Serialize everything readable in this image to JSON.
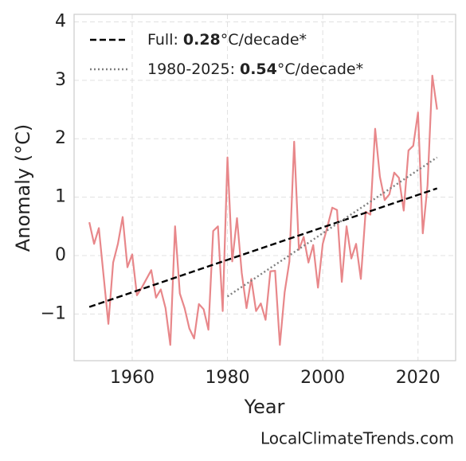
{
  "chart_data": {
    "type": "line",
    "xlabel": "Year",
    "ylabel": "Anomaly (°C)",
    "source": "LocalClimateTrends.com",
    "xlim": [
      1947.8,
      2027.9
    ],
    "xticks": [
      1960,
      1980,
      2000,
      2020
    ],
    "ylim": [
      -1.8,
      4.13
    ],
    "yticks": [
      {
        "value": -1,
        "label": "−1"
      },
      0,
      1,
      2,
      3,
      4
    ],
    "grid": true,
    "legend": "upper left",
    "series": [
      {
        "color": "#e8878a",
        "x": [
          1951,
          1952,
          1953,
          1954,
          1955,
          1956,
          1957,
          1958,
          1959,
          1960,
          1961,
          1962,
          1963,
          1964,
          1965,
          1966,
          1967,
          1968,
          1969,
          1970,
          1971,
          1972,
          1973,
          1974,
          1975,
          1976,
          1977,
          1978,
          1979,
          1980,
          1981,
          1982,
          1983,
          1984,
          1985,
          1986,
          1987,
          1988,
          1989,
          1990,
          1991,
          1992,
          1993,
          1994,
          1995,
          1996,
          1997,
          1998,
          1999,
          2000,
          2001,
          2002,
          2003,
          2004,
          2005,
          2006,
          2007,
          2008,
          2009,
          2010,
          2011,
          2012,
          2013,
          2014,
          2015,
          2016,
          2017,
          2018,
          2019,
          2020,
          2021,
          2022,
          2023,
          2024
        ],
        "values": [
          0.57,
          0.2,
          0.47,
          -0.35,
          -1.17,
          -0.12,
          0.2,
          0.66,
          -0.2,
          0.02,
          -0.68,
          -0.55,
          -0.4,
          -0.25,
          -0.72,
          -0.58,
          -0.9,
          -1.53,
          0.5,
          -0.65,
          -0.9,
          -1.25,
          -1.42,
          -0.83,
          -0.92,
          -1.27,
          0.42,
          0.5,
          -0.95,
          1.68,
          -0.1,
          0.64,
          -0.3,
          -0.9,
          -0.4,
          -0.95,
          -0.82,
          -1.1,
          -0.27,
          -0.26,
          -1.53,
          -0.63,
          -0.1,
          1.95,
          0.1,
          0.32,
          -0.12,
          0.18,
          -0.55,
          0.2,
          0.5,
          0.82,
          0.78,
          -0.45,
          0.5,
          -0.05,
          0.2,
          -0.4,
          0.75,
          0.7,
          2.17,
          1.35,
          0.95,
          1.05,
          1.42,
          1.33,
          0.77,
          1.8,
          1.88,
          2.45,
          0.38,
          1.2,
          3.08,
          2.5
        ]
      },
      {
        "name": "Full:",
        "rate": 0.28,
        "rate_unit": "°C/decade*",
        "color": "#000000",
        "style": "dashed",
        "x": [
          1951,
          2024
        ],
        "values": [
          -0.88,
          1.15
        ]
      },
      {
        "name": "1980-2025:",
        "rate": 0.54,
        "rate_unit": "°C/decade*",
        "color": "#808080",
        "style": "dotted",
        "x": [
          1980,
          2024
        ],
        "values": [
          -0.7,
          1.68
        ]
      }
    ]
  }
}
